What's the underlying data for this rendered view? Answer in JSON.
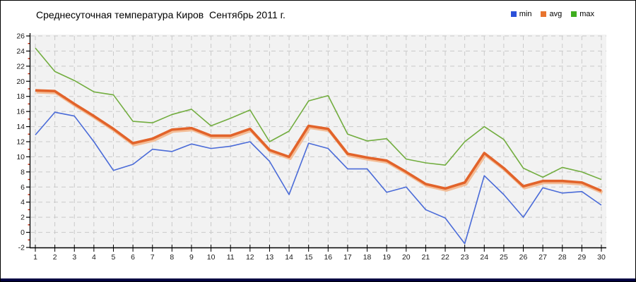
{
  "title": "Среднесуточная температура Киров  Сентябрь 2011 г.",
  "legend": [
    {
      "label": "min",
      "color": "#2b50d9"
    },
    {
      "label": "avg",
      "color": "#e8742e"
    },
    {
      "label": "max",
      "color": "#3fae1f"
    }
  ],
  "colors": {
    "plot_bg": "#f2f2f2",
    "grid": "#c9c9c9",
    "axis": "#000000",
    "minor_tick": "#c22000",
    "tick_label": "#1a1a1a",
    "avg_halo": "#f3bd97"
  },
  "chart_data": {
    "type": "line",
    "title": "Среднесуточная температура Киров  Сентябрь 2011 г.",
    "xlabel": "",
    "ylabel": "",
    "x": [
      1,
      2,
      3,
      4,
      5,
      6,
      7,
      8,
      9,
      10,
      11,
      12,
      13,
      14,
      15,
      16,
      17,
      18,
      19,
      20,
      21,
      22,
      23,
      24,
      25,
      26,
      27,
      28,
      29,
      30
    ],
    "xlim": [
      1,
      30
    ],
    "ylim": [
      -2,
      26
    ],
    "ytick_step": 2,
    "grid": true,
    "legend_position": "top-right",
    "series": [
      {
        "name": "min",
        "color": "#4a6bd8",
        "width": 1.6,
        "values": [
          12.9,
          15.9,
          15.4,
          12.0,
          8.2,
          9.0,
          11.0,
          10.7,
          11.7,
          11.1,
          11.4,
          12.0,
          9.4,
          5.0,
          11.8,
          11.1,
          8.4,
          8.4,
          5.3,
          6.0,
          3.0,
          1.9,
          -1.5,
          7.5,
          5.0,
          2.0,
          5.9,
          5.2,
          5.4,
          3.6
        ]
      },
      {
        "name": "avg",
        "color": "#e2632a",
        "width": 3.6,
        "values": [
          18.8,
          18.7,
          17.0,
          15.4,
          13.7,
          11.8,
          12.4,
          13.6,
          13.8,
          12.8,
          12.8,
          13.7,
          10.9,
          10.0,
          14.1,
          13.7,
          10.4,
          9.9,
          9.5,
          8.0,
          6.4,
          5.8,
          6.6,
          10.5,
          8.5,
          6.1,
          6.8,
          6.8,
          6.6,
          5.5
        ]
      },
      {
        "name": "max",
        "color": "#72ad3f",
        "width": 1.6,
        "values": [
          24.4,
          21.3,
          20.1,
          18.6,
          18.2,
          14.7,
          14.5,
          15.6,
          16.3,
          14.1,
          15.1,
          16.2,
          12.0,
          13.4,
          17.4,
          18.1,
          13.0,
          12.1,
          12.4,
          9.7,
          9.2,
          8.9,
          12.0,
          14.0,
          12.3,
          8.5,
          7.3,
          8.6,
          8.0,
          7.0
        ]
      }
    ]
  }
}
